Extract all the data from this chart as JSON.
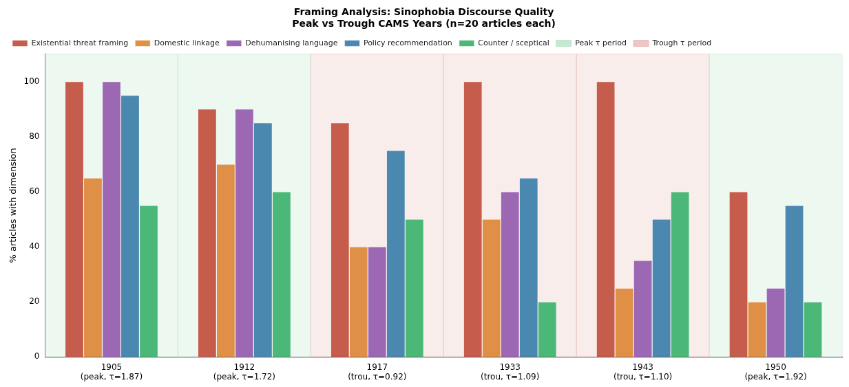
{
  "chart_data": {
    "type": "bar",
    "title": "Framing Analysis: Sinophobia Discourse Quality\nPeak vs Trough CAMS Years (n=20 articles each)",
    "ylabel": "% articles with dimension",
    "categories": [
      "1905\n(peak, τ=1.87)",
      "1912\n(peak, τ=1.72)",
      "1917\n(trou, τ=0.92)",
      "1933\n(trou, τ=1.09)",
      "1943\n(trou, τ=1.10)",
      "1950\n(peak, τ=1.92)"
    ],
    "series": [
      {
        "name": "Existential threat framing",
        "color": "#c65c4c",
        "values": [
          100,
          90,
          85,
          100,
          100,
          60
        ]
      },
      {
        "name": "Domestic linkage",
        "color": "#e08f46",
        "values": [
          65,
          70,
          40,
          50,
          25,
          20
        ]
      },
      {
        "name": "Dehumanising language",
        "color": "#9c68b4",
        "values": [
          100,
          90,
          40,
          60,
          35,
          25
        ]
      },
      {
        "name": "Policy recommendation",
        "color": "#4a88b0",
        "values": [
          95,
          85,
          75,
          65,
          50,
          55
        ]
      },
      {
        "name": "Counter / sceptical",
        "color": "#4cb877",
        "values": [
          55,
          60,
          50,
          20,
          60,
          20
        ]
      }
    ],
    "bands": [
      {
        "axis": "x",
        "from": "1905\n(peak, τ=1.87)",
        "to": "1905\n(peak, τ=1.87)",
        "label": "Peak τ period",
        "color": "#b9e4c9"
      },
      {
        "axis": "x",
        "from": "1912\n(peak, τ=1.72)",
        "to": "1912\n(peak, τ=1.72)",
        "color": "#b9e4c9"
      },
      {
        "axis": "x",
        "from": "1917\n(trou, τ=0.92)",
        "to": "1917\n(trou, τ=0.92)",
        "label": "Trough τ period",
        "color": "#e8b9b4"
      },
      {
        "axis": "x",
        "from": "1933\n(trou, τ=1.09)",
        "to": "1933\n(trou, τ=1.09)",
        "color": "#e8b9b4"
      },
      {
        "axis": "x",
        "from": "1943\n(trou, τ=1.10)",
        "to": "1943\n(trou, τ=1.10)",
        "color": "#e8b9b4"
      },
      {
        "axis": "x",
        "from": "1950\n(peak, τ=1.92)",
        "to": "1950\n(peak, τ=1.92)",
        "color": "#b9e4c9"
      }
    ],
    "ylim": [
      0,
      110
    ],
    "yticks": [
      0,
      20,
      40,
      60,
      80,
      100
    ],
    "grid": false,
    "legend": "top left"
  }
}
